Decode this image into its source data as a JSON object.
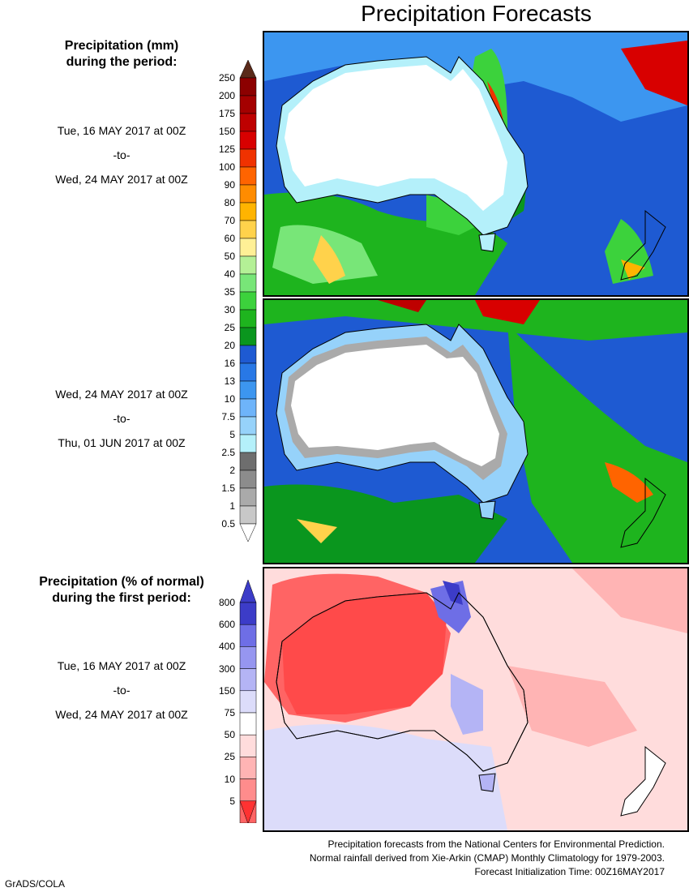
{
  "title": "Precipitation Forecasts",
  "precip_header": [
    "Precipitation (mm)",
    "during the period:"
  ],
  "anomaly_header": [
    "Precipitation (% of normal)",
    "during the first period:"
  ],
  "period1": {
    "start": "Tue, 16 MAY 2017 at 00Z",
    "to": "-to-",
    "end": "Wed, 24 MAY 2017 at 00Z"
  },
  "period2": {
    "start": "Wed, 24 MAY 2017 at 00Z",
    "to": "-to-",
    "end": "Thu, 01 JUN 2017 at 00Z"
  },
  "period3": {
    "start": "Tue, 16 MAY 2017 at 00Z",
    "to": "-to-",
    "end": "Wed, 24 MAY 2017 at 00Z"
  },
  "precip_scale": {
    "labels": [
      "250",
      "200",
      "175",
      "150",
      "125",
      "100",
      "90",
      "80",
      "70",
      "60",
      "50",
      "40",
      "35",
      "30",
      "25",
      "20",
      "16",
      "13",
      "10",
      "7.5",
      "5",
      "2.5",
      "2",
      "1.5",
      "1",
      "0.5"
    ],
    "colors": [
      "#5a2a1a",
      "#8c0000",
      "#a40000",
      "#be0000",
      "#d80000",
      "#f03200",
      "#ff6400",
      "#ff8c00",
      "#ffb400",
      "#ffd24b",
      "#fff096",
      "#b4f096",
      "#78e678",
      "#3cd23c",
      "#1eb41e",
      "#0a961e",
      "#1e5ad2",
      "#2878e6",
      "#3c96f0",
      "#6eb4fa",
      "#96d2fa",
      "#b4f0fa",
      "#6e6e6e",
      "#8c8c8c",
      "#aaaaaa",
      "#c8c8c8"
    ],
    "bottom_color": "#ffffff"
  },
  "anomaly_scale": {
    "labels": [
      "800",
      "600",
      "400",
      "300",
      "150",
      "75",
      "50",
      "25",
      "10",
      "5"
    ],
    "colors": [
      "#3c3cc8",
      "#6e6ee6",
      "#9696f0",
      "#b4b4f5",
      "#dcdcfa",
      "#ffffff",
      "#ffdcdc",
      "#ffb4b4",
      "#ff8c8c",
      "#ff6464"
    ],
    "top_color": "#3c3cc8",
    "bottom_color": "#ff3232"
  },
  "footer": [
    "Precipitation forecasts from the National Centers for Environmental Prediction.",
    "Normal rainfall derived from Xie-Arkin (CMAP) Monthly Climatology for 1979-2003.",
    "Forecast Initialization Time: 00Z16MAY2017"
  ],
  "credit": "GrADS/COLA"
}
